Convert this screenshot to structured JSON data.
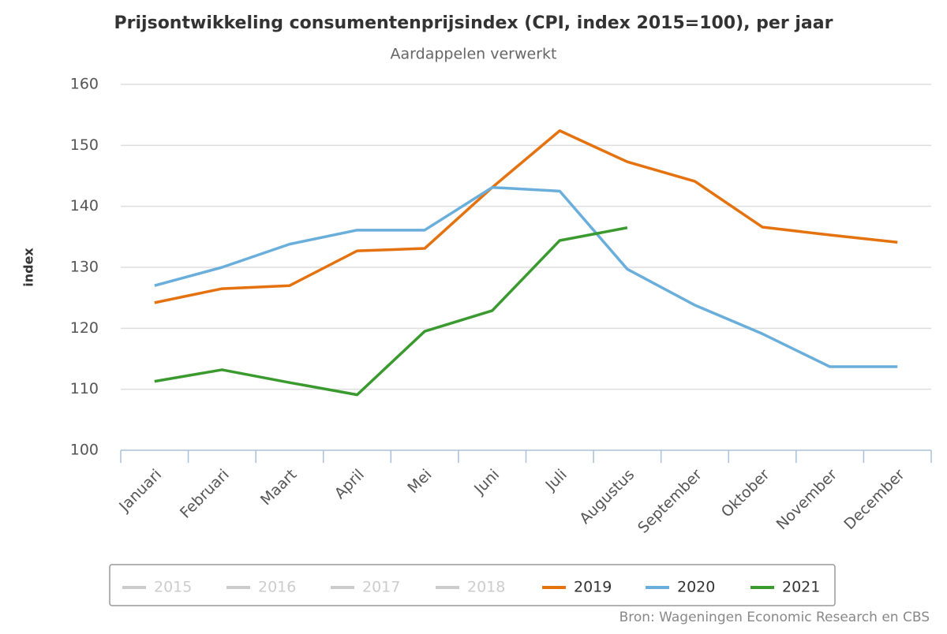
{
  "chart_data": {
    "type": "line",
    "title": "Prijsontwikkeling consumentenprijsindex (CPI, index 2015=100), per jaar",
    "subtitle": "Aardappelen verwerkt",
    "y_label": "index",
    "source": "Bron: Wageningen Economic Research en CBS",
    "categories": [
      "Januari",
      "Februari",
      "Maart",
      "April",
      "Mei",
      "Juni",
      "Juli",
      "Augustus",
      "September",
      "Oktober",
      "November",
      "December"
    ],
    "series": [
      {
        "name": "2015",
        "color": "#cccccc",
        "visible": false,
        "values": [
          null,
          null,
          null,
          null,
          null,
          null,
          null,
          null,
          null,
          null,
          null,
          null
        ]
      },
      {
        "name": "2016",
        "color": "#cccccc",
        "visible": false,
        "values": [
          null,
          null,
          null,
          null,
          null,
          null,
          null,
          null,
          null,
          null,
          null,
          null
        ]
      },
      {
        "name": "2017",
        "color": "#cccccc",
        "visible": false,
        "values": [
          null,
          null,
          null,
          null,
          null,
          null,
          null,
          null,
          null,
          null,
          null,
          null
        ]
      },
      {
        "name": "2018",
        "color": "#cccccc",
        "visible": false,
        "values": [
          null,
          null,
          null,
          null,
          null,
          null,
          null,
          null,
          null,
          null,
          null,
          null
        ]
      },
      {
        "name": "2019",
        "color": "#e3720f",
        "visible": true,
        "values": [
          124.2,
          126.5,
          127.0,
          132.7,
          133.1,
          143.1,
          152.4,
          147.3,
          144.1,
          136.6,
          135.3,
          134.1
        ]
      },
      {
        "name": "2020",
        "color": "#6aaedb",
        "visible": true,
        "values": [
          127.0,
          130.0,
          133.8,
          136.1,
          136.1,
          143.1,
          142.5,
          129.7,
          123.8,
          119.1,
          113.7,
          113.7
        ]
      },
      {
        "name": "2021",
        "color": "#3b9a2f",
        "visible": true,
        "values": [
          111.3,
          113.2,
          111.1,
          109.1,
          119.5,
          122.9,
          134.4,
          136.5,
          null,
          null,
          null,
          null
        ]
      }
    ],
    "ylim": [
      100,
      160
    ],
    "yticks": [
      100,
      110,
      120,
      130,
      140,
      150,
      160
    ],
    "grid": true,
    "legend": "bottom"
  }
}
